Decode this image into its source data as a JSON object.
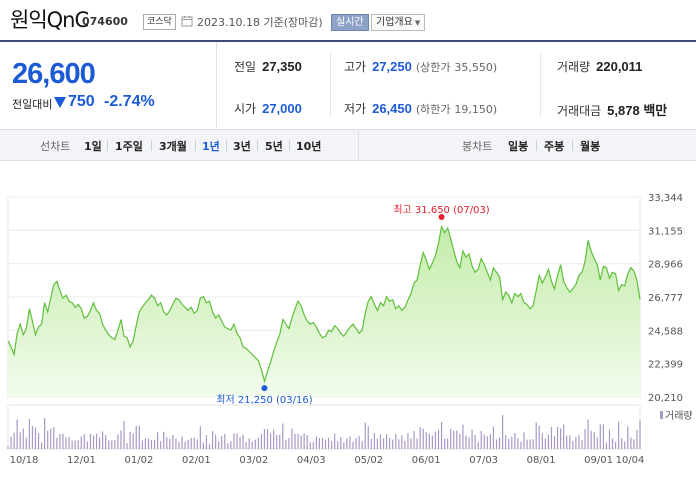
{
  "header": {
    "name": "원익QnC",
    "code": "074600",
    "market": "코스닥",
    "date": "2023.10.18 기준(장마감)",
    "live_label": "실시간",
    "company_info_label": "기업개요"
  },
  "summary": {
    "price": "26,600",
    "prev_label": "전일대비",
    "change": "750",
    "change_pct": "-2.74%",
    "prev_close_label": "전일",
    "prev_close": "27,350",
    "high_label": "고가",
    "high": "27,250",
    "upper_limit_label": "(상한가",
    "upper_limit": "35,550)",
    "volume_label": "거래량",
    "volume": "220,011",
    "open_label": "시가",
    "open": "27,000",
    "low_label": "저가",
    "low": "26,450",
    "lower_limit_label": "(하한가",
    "lower_limit": "19,150)",
    "amount_label": "거래대금",
    "amount": "5,878 백만"
  },
  "tabs": {
    "line_chart_label": "선차트",
    "periods": [
      "1일",
      "1주일",
      "3개월",
      "1년",
      "3년",
      "5년",
      "10년"
    ],
    "active_period": "1년",
    "candle_label": "봉차트",
    "candles": [
      "일봉",
      "주봉",
      "월봉"
    ]
  },
  "colors": {
    "accent_blue": "#1d5bd6",
    "line_green": "#5fbf3c",
    "fill_green": "#d7f3c2",
    "max_red": "#e0202f",
    "volume_purple": "#a898c8"
  },
  "chart_data": {
    "type": "area",
    "x_ticks": [
      "10/18",
      "12/01",
      "01/02",
      "02/01",
      "03/02",
      "04/03",
      "05/02",
      "06/01",
      "07/03",
      "08/01",
      "09/01",
      "10/04"
    ],
    "y_ticks": [
      33344,
      31155,
      28966,
      26777,
      24588,
      22399,
      20210
    ],
    "ylim": [
      20210,
      33344
    ],
    "max_label": "최고 31,650 (07/03)",
    "min_label": "최저 21,250 (03/16)",
    "volume_label": "거래량",
    "values": [
      23900,
      23500,
      23000,
      24400,
      25000,
      24300,
      24700,
      26000,
      25200,
      24300,
      24800,
      25000,
      26400,
      25800,
      26700,
      27600,
      27800,
      27200,
      26700,
      26900,
      26500,
      26400,
      26100,
      26300,
      26000,
      25400,
      25500,
      25900,
      26400,
      25900,
      25700,
      25000,
      24600,
      24300,
      24100,
      24000,
      24600,
      25300,
      24200,
      24100,
      23500,
      23900,
      24900,
      25800,
      26100,
      26400,
      26600,
      26900,
      26700,
      26200,
      26400,
      25800,
      25600,
      25900,
      26300,
      26700,
      26600,
      26300,
      26100,
      25900,
      26100,
      25700,
      25900,
      26700,
      26800,
      26400,
      26500,
      25800,
      25400,
      25600,
      25200,
      24800,
      24700,
      24600,
      25000,
      24400,
      24100,
      23500,
      23400,
      23200,
      23000,
      22800,
      22600,
      22000,
      21250,
      21900,
      22500,
      23200,
      23800,
      24300,
      25300,
      25000,
      24700,
      25400,
      26000,
      26500,
      26200,
      25600,
      25200,
      25000,
      25100,
      24800,
      24400,
      24100,
      24200,
      24600,
      24500,
      24900,
      24700,
      24400,
      24200,
      24500,
      24800,
      25000,
      24700,
      24400,
      24600,
      25700,
      26500,
      26800,
      26300,
      25900,
      26400,
      26200,
      26800,
      26500,
      26600,
      26000,
      26200,
      25900,
      26100,
      26600,
      27000,
      27700,
      27900,
      28900,
      29700,
      29200,
      28600,
      29000,
      29500,
      30300,
      31400,
      31000,
      31300,
      30600,
      29800,
      29100,
      28700,
      29800,
      29400,
      29600,
      28800,
      28400,
      28600,
      29300,
      28900,
      28400,
      27900,
      28700,
      28400,
      28100,
      26600,
      27100,
      26900,
      26400,
      27000,
      26800,
      27000,
      26400,
      26300,
      26000,
      26200,
      27200,
      28200,
      27700,
      28100,
      28600,
      27800,
      27300,
      28200,
      28900,
      27800,
      27400,
      27100,
      27300,
      27600,
      28200,
      28400,
      29100,
      30500,
      29800,
      29300,
      28900,
      27900,
      28800,
      28700,
      28000,
      28400,
      28300,
      27200,
      27600,
      27500,
      28300,
      28700,
      28500,
      27900,
      26600
    ]
  }
}
